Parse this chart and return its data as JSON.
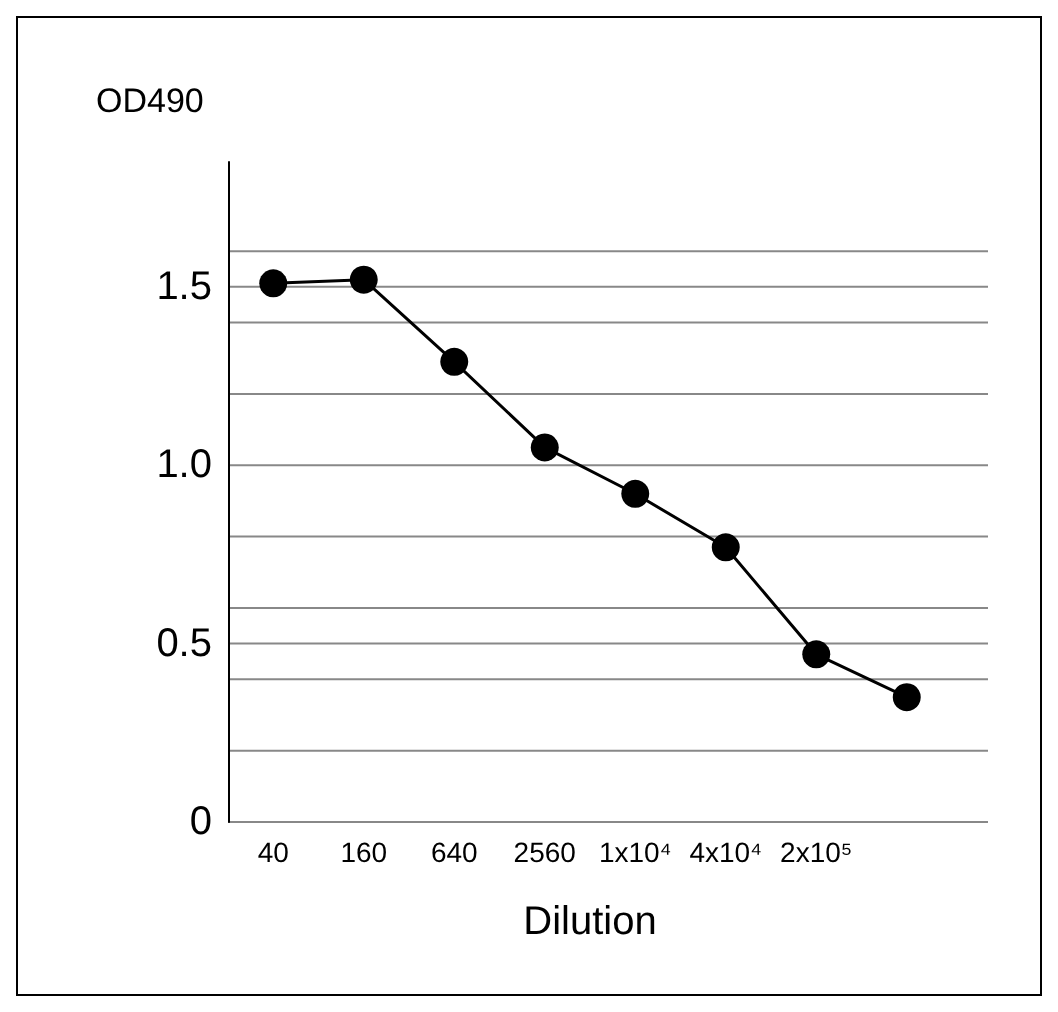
{
  "chart_data": {
    "type": "line",
    "ylabel": "OD490",
    "xlabel": "Dilution",
    "categories": [
      "40",
      "160",
      "640",
      "2560",
      "1x10⁴",
      "4x10⁴",
      "2x10⁵",
      null
    ],
    "series": [
      {
        "color": "#000000",
        "values": [
          1.51,
          1.52,
          1.29,
          1.05,
          0.92,
          0.77,
          0.47,
          0.35
        ]
      }
    ],
    "ylim": [
      0,
      1.85
    ],
    "yticks": [
      {
        "value": 0,
        "label": "0"
      },
      {
        "value": 0.2,
        "label": null
      },
      {
        "value": 0.4,
        "label": null
      },
      {
        "value": 0.5,
        "label": "0.5"
      },
      {
        "value": 0.6,
        "label": null
      },
      {
        "value": 0.8,
        "label": null
      },
      {
        "value": 1,
        "label": "1.0"
      },
      {
        "value": 1.2,
        "label": null
      },
      {
        "value": 1.4,
        "label": null
      },
      {
        "value": 1.5,
        "label": "1.5"
      },
      {
        "value": 1.6,
        "label": null
      }
    ],
    "grid": "y",
    "marker": "circle",
    "line_style": "solid"
  }
}
